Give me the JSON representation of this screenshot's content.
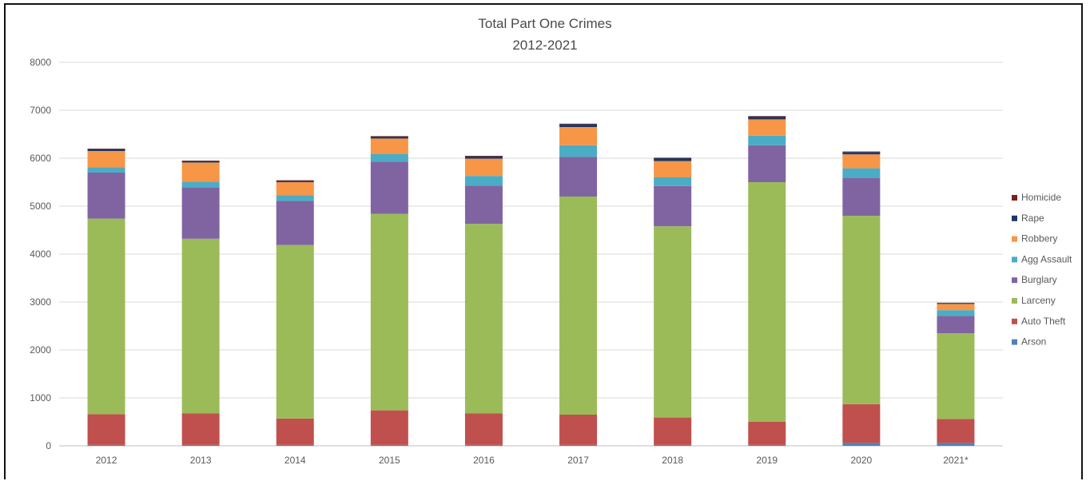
{
  "chart_data": {
    "type": "bar",
    "stacked": true,
    "title": "Total Part One Crimes",
    "subtitle": "2012-2021",
    "categories": [
      "2012",
      "2013",
      "2014",
      "2015",
      "2016",
      "2017",
      "2018",
      "2019",
      "2020",
      "2021*"
    ],
    "ylim": [
      0,
      8000
    ],
    "yticks": [
      "0",
      "1000",
      "2000",
      "3000",
      "4000",
      "5000",
      "6000",
      "7000",
      "8000"
    ],
    "grid": true,
    "legend_position": "right",
    "series": [
      {
        "name": "Arson",
        "color": "#4f81bd",
        "values": [
          20,
          20,
          20,
          20,
          20,
          20,
          20,
          20,
          60,
          60
        ]
      },
      {
        "name": "Auto Theft",
        "color": "#c0504d",
        "values": [
          640,
          660,
          550,
          720,
          660,
          630,
          570,
          480,
          810,
          500
        ]
      },
      {
        "name": "Larceny",
        "color": "#9bbb59",
        "values": [
          4080,
          3640,
          3620,
          4100,
          3950,
          4550,
          3990,
          5000,
          3930,
          1790
        ]
      },
      {
        "name": "Burglary",
        "color": "#8064a2",
        "values": [
          960,
          1070,
          920,
          1090,
          800,
          830,
          840,
          770,
          790,
          360
        ]
      },
      {
        "name": "Agg Assault",
        "color": "#4bacc6",
        "values": [
          110,
          120,
          120,
          160,
          200,
          240,
          180,
          200,
          200,
          120
        ]
      },
      {
        "name": "Robbery",
        "color": "#f79646",
        "values": [
          340,
          400,
          270,
          320,
          360,
          380,
          340,
          340,
          290,
          130
        ]
      },
      {
        "name": "Rape",
        "color": "#1f3864",
        "values": [
          40,
          30,
          30,
          40,
          50,
          60,
          60,
          60,
          50,
          20
        ]
      },
      {
        "name": "Homicide",
        "color": "#7b1f1f",
        "values": [
          10,
          10,
          10,
          10,
          10,
          10,
          10,
          10,
          10,
          5
        ]
      }
    ]
  }
}
